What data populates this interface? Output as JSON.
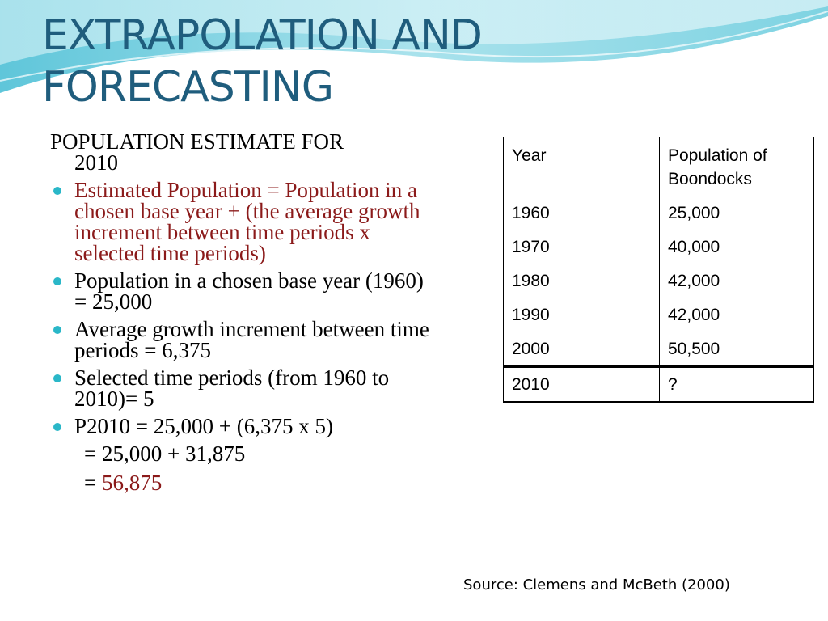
{
  "slide": {
    "title_line1": "EXTRAPOLATION AND",
    "title_line2": "FORECASTING",
    "intro_line1": "POPULATION ESTIMATE FOR",
    "intro_line2": "2010",
    "bullets": [
      "Estimated Population = Population in a chosen base year + (the average growth increment between time periods x selected time periods)",
      "Population in a chosen base year (1960) = 25,000",
      "Average growth increment between time periods = 6,375",
      "Selected time periods (from 1960 to 2010)= 5",
      "P2010 = 25,000 + (6,375 x 5)"
    ],
    "calc_line1": "= 25,000 + 31,875",
    "calc_line2_prefix": "= ",
    "calc_line2_result": "56,875",
    "source": "Source: Clemens and McBeth (2000)",
    "colors": {
      "title": "#1f5d7d",
      "highlight_red": "#8b1a1a",
      "bullet": "#2ab7c8"
    }
  },
  "table": {
    "headers": [
      "Year",
      "Population of Boondocks"
    ],
    "rows": [
      [
        "1960",
        "25,000"
      ],
      [
        "1970",
        "40,000"
      ],
      [
        "1980",
        "42,000"
      ],
      [
        "1990",
        "42,000"
      ],
      [
        "2000",
        "50,500"
      ],
      [
        "2010",
        "?"
      ]
    ]
  }
}
